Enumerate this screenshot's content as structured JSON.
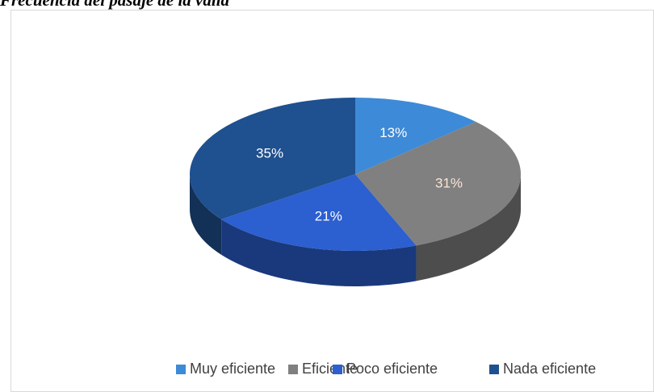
{
  "chart_data": {
    "type": "pie3d",
    "title": "Frecuencia del pasaje de la valla",
    "categories": [
      "Muy eficiente",
      "Eficiente",
      "Poco eficiente",
      "Nada eficiente"
    ],
    "values": [
      13,
      31,
      21,
      35
    ],
    "value_labels": [
      "13%",
      "31%",
      "21%",
      "35%"
    ],
    "colors": [
      "#3d8ad8",
      "#808080",
      "#2c5fcf",
      "#1f508f"
    ],
    "legend": "bottom"
  }
}
